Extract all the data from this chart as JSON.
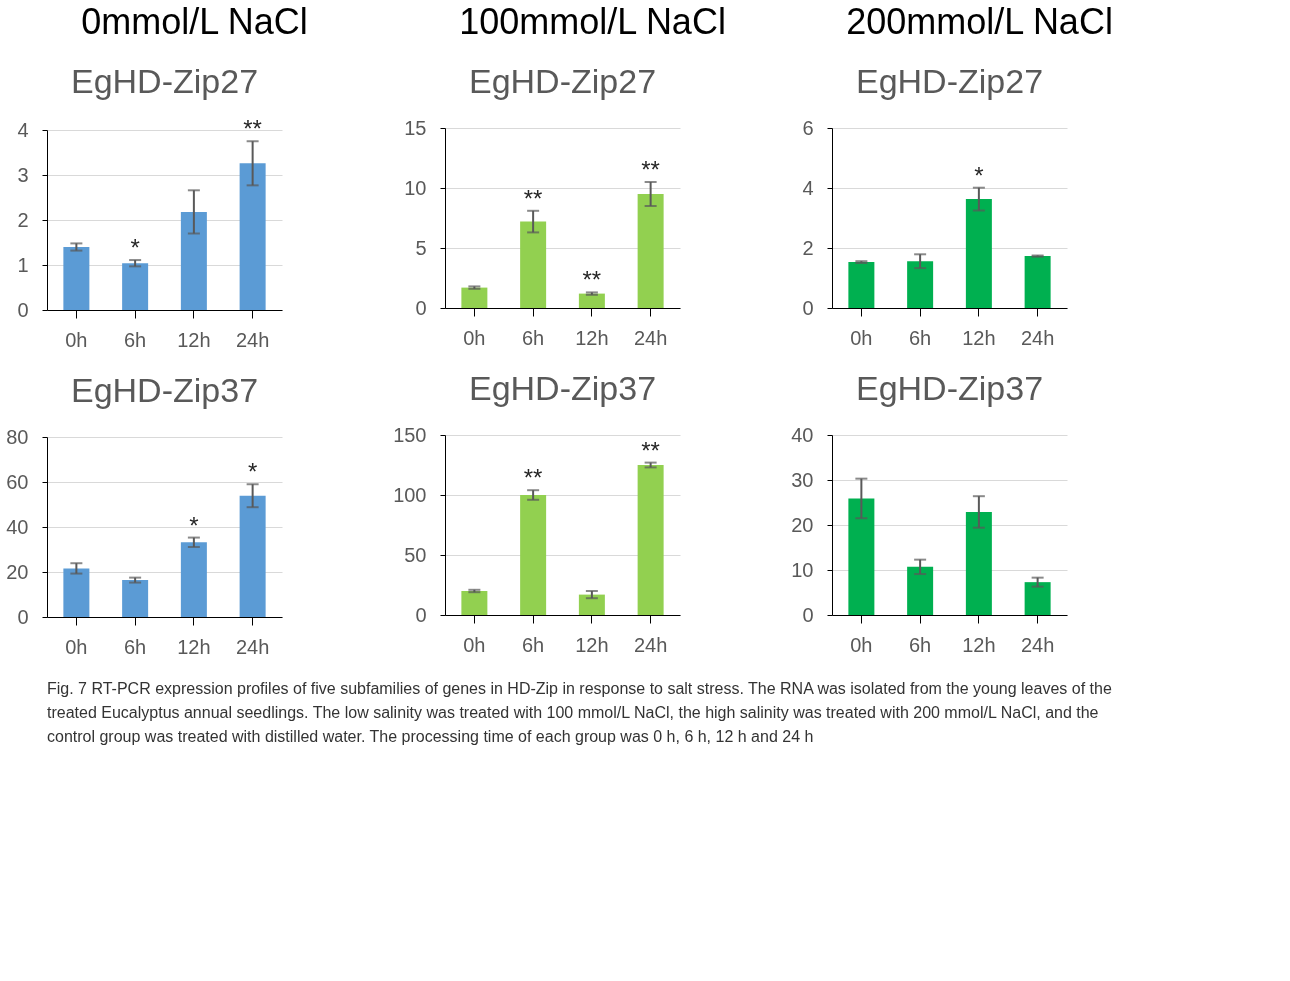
{
  "chart_data": [
    {
      "type": "bar",
      "title": "EgHD-Zip27",
      "categories": [
        "0h",
        "6h",
        "12h",
        "24h"
      ],
      "values": [
        1.4,
        1.04,
        2.18,
        3.26
      ],
      "errors": [
        0.08,
        0.07,
        0.48,
        0.49
      ],
      "color": "#5b9bd5",
      "ylim": [
        0,
        4
      ],
      "yticks": [
        0,
        1,
        2,
        3,
        4
      ],
      "grid": "y",
      "value_labels": [
        null,
        "*",
        null,
        "**"
      ],
      "annotations": [
        "0mmol/L NaCl"
      ]
    },
    {
      "type": "bar",
      "title": "EgHD-Zip27",
      "categories": [
        "0h",
        "6h",
        "12h",
        "24h"
      ],
      "values": [
        1.7,
        7.2,
        1.2,
        9.5
      ],
      "errors": [
        0.1,
        0.9,
        0.1,
        1.0
      ],
      "color": "#92d050",
      "ylim": [
        0,
        15
      ],
      "yticks": [
        0,
        5,
        10,
        15
      ],
      "grid": "y",
      "value_labels": [
        null,
        "**",
        "**",
        "**"
      ],
      "annotations": [
        "100mmol/L NaCl"
      ]
    },
    {
      "type": "bar",
      "title": "EgHD-Zip27",
      "categories": [
        "0h",
        "6h",
        "12h",
        "24h"
      ],
      "values": [
        1.53,
        1.56,
        3.63,
        1.73
      ],
      "errors": [
        0.03,
        0.23,
        0.38,
        0.02
      ],
      "color": "#00b050",
      "ylim": [
        0,
        6
      ],
      "yticks": [
        0,
        2,
        4,
        6
      ],
      "grid": "y",
      "value_labels": [
        null,
        null,
        "*",
        null
      ],
      "annotations": [
        "200mmol/L NaCl"
      ]
    },
    {
      "type": "bar",
      "title": "EgHD-Zip37",
      "categories": [
        "0h",
        "6h",
        "12h",
        "24h"
      ],
      "values": [
        21.6,
        16.4,
        33.2,
        53.9
      ],
      "errors": [
        2.3,
        1.1,
        2.1,
        5.1
      ],
      "color": "#5b9bd5",
      "ylim": [
        0,
        80
      ],
      "yticks": [
        0,
        20,
        40,
        60,
        80
      ],
      "grid": "y",
      "value_labels": [
        null,
        null,
        "*",
        "*"
      ]
    },
    {
      "type": "bar",
      "title": "EgHD-Zip37",
      "categories": [
        "0h",
        "6h",
        "12h",
        "24h"
      ],
      "values": [
        20,
        100,
        17,
        125
      ],
      "errors": [
        1,
        4,
        3,
        2
      ],
      "color": "#92d050",
      "ylim": [
        0,
        150
      ],
      "yticks": [
        0,
        50,
        100,
        150
      ],
      "grid": "y",
      "value_labels": [
        null,
        "**",
        null,
        "**"
      ]
    },
    {
      "type": "bar",
      "title": "EgHD-Zip37",
      "categories": [
        "0h",
        "6h",
        "12h",
        "24h"
      ],
      "values": [
        25.9,
        10.7,
        22.9,
        7.3
      ],
      "errors": [
        4.4,
        1.6,
        3.5,
        1.0
      ],
      "color": "#00b050",
      "ylim": [
        0,
        40
      ],
      "yticks": [
        0,
        10,
        20,
        30,
        40
      ],
      "grid": "y",
      "annotations": [
        "Fig. 7 RT-PCR expression profiles of five subfamilies of genes in HD-Zip in response to salt stress. The RNA was isolated from the young leaves of the treated Eucalyptus annual seedlings. The low salinity was treated with 100 mmol/L NaCl, the high salinity was treated with 200 mmol/L NaCl, and the control group was treated with distilled water. The processing time of each group was 0 h, 6 h, 12 h and 24 h"
      ]
    }
  ]
}
